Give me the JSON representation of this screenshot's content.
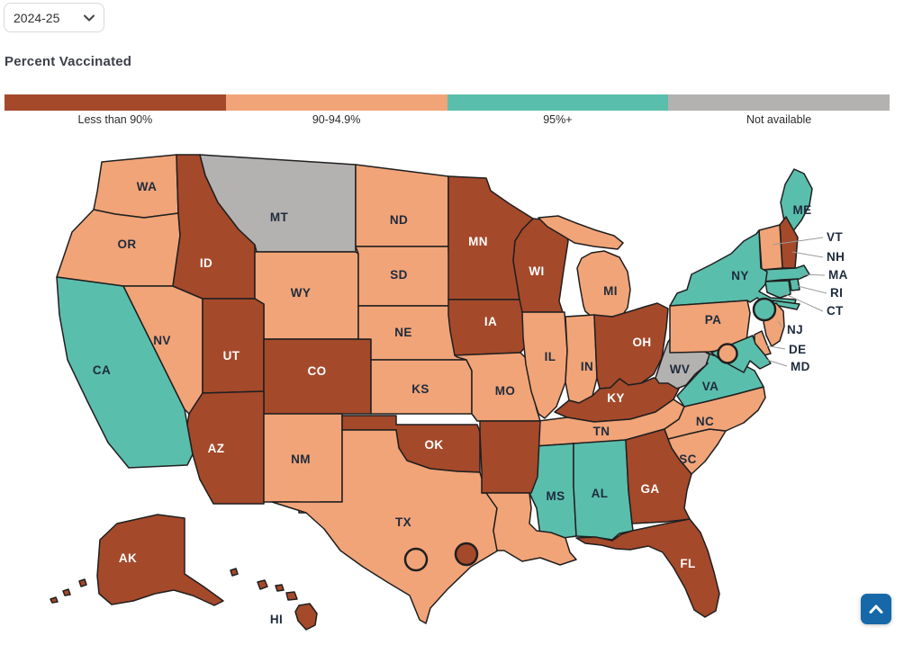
{
  "controls": {
    "year_select": {
      "value": "2024-25"
    }
  },
  "legend": {
    "title": "Percent Vaccinated",
    "categories": [
      {
        "label": "Less than 90%",
        "color": "#A5492B"
      },
      {
        "label": "90-94.9%",
        "color": "#F1A478"
      },
      {
        "label": "95%+",
        "color": "#5ABEAC"
      },
      {
        "label": "Not available",
        "color": "#B4B1B1"
      }
    ]
  },
  "map": {
    "states": [
      {
        "abbr": "WA",
        "category": "90-94.9%"
      },
      {
        "abbr": "OR",
        "category": "90-94.9%"
      },
      {
        "abbr": "CA",
        "category": "95%+"
      },
      {
        "abbr": "NV",
        "category": "90-94.9%"
      },
      {
        "abbr": "ID",
        "category": "Less than 90%"
      },
      {
        "abbr": "MT",
        "category": "Not available"
      },
      {
        "abbr": "WY",
        "category": "90-94.9%"
      },
      {
        "abbr": "UT",
        "category": "Less than 90%"
      },
      {
        "abbr": "CO",
        "category": "Less than 90%"
      },
      {
        "abbr": "AZ",
        "category": "Less than 90%"
      },
      {
        "abbr": "NM",
        "category": "90-94.9%"
      },
      {
        "abbr": "ND",
        "category": "90-94.9%"
      },
      {
        "abbr": "SD",
        "category": "90-94.9%"
      },
      {
        "abbr": "NE",
        "category": "90-94.9%"
      },
      {
        "abbr": "KS",
        "category": "90-94.9%"
      },
      {
        "abbr": "OK",
        "category": "Less than 90%"
      },
      {
        "abbr": "TX",
        "category": "90-94.9%"
      },
      {
        "abbr": "MN",
        "category": "Less than 90%"
      },
      {
        "abbr": "IA",
        "category": "Less than 90%"
      },
      {
        "abbr": "MO",
        "category": "90-94.9%"
      },
      {
        "abbr": "WI",
        "category": "Less than 90%"
      },
      {
        "abbr": "IL",
        "category": "90-94.9%"
      },
      {
        "abbr": "MI",
        "category": "90-94.9%"
      },
      {
        "abbr": "IN",
        "category": "90-94.9%"
      },
      {
        "abbr": "OH",
        "category": "Less than 90%"
      },
      {
        "abbr": "KY",
        "category": "Less than 90%"
      },
      {
        "abbr": "TN",
        "category": "90-94.9%"
      },
      {
        "abbr": "MS",
        "category": "95%+"
      },
      {
        "abbr": "AL",
        "category": "95%+"
      },
      {
        "abbr": "GA",
        "category": "Less than 90%"
      },
      {
        "abbr": "FL",
        "category": "Less than 90%"
      },
      {
        "abbr": "SC",
        "category": "90-94.9%"
      },
      {
        "abbr": "NC",
        "category": "90-94.9%"
      },
      {
        "abbr": "VA",
        "category": "95%+"
      },
      {
        "abbr": "WV",
        "category": "Not available"
      },
      {
        "abbr": "AR",
        "category": "Less than 90%"
      },
      {
        "abbr": "LA",
        "category": "90-94.9%"
      },
      {
        "abbr": "ME",
        "category": "95%+"
      },
      {
        "abbr": "NH",
        "category": "Less than 90%"
      },
      {
        "abbr": "VT",
        "category": "90-94.9%"
      },
      {
        "abbr": "MA",
        "category": "95%+"
      },
      {
        "abbr": "RI",
        "category": "95%+"
      },
      {
        "abbr": "CT",
        "category": "95%+"
      },
      {
        "abbr": "NY",
        "category": "95%+"
      },
      {
        "abbr": "NJ",
        "category": "90-94.9%"
      },
      {
        "abbr": "PA",
        "category": "90-94.9%"
      },
      {
        "abbr": "DE",
        "category": "90-94.9%"
      },
      {
        "abbr": "MD",
        "category": "95%+"
      },
      {
        "abbr": "AK",
        "category": "Less than 90%"
      },
      {
        "abbr": "HI",
        "category": "Less than 90%"
      }
    ],
    "callout_states": [
      "VT",
      "NH",
      "MA",
      "RI",
      "CT",
      "NJ",
      "DE",
      "MD"
    ],
    "city_markers": [
      {
        "category": "95%+"
      },
      {
        "category": "90-94.9%"
      },
      {
        "category": "90-94.9%"
      },
      {
        "category": "Less than 90%"
      }
    ]
  },
  "scroll_top_button": {
    "color": "#1668A8",
    "icon": "chevron-up"
  }
}
